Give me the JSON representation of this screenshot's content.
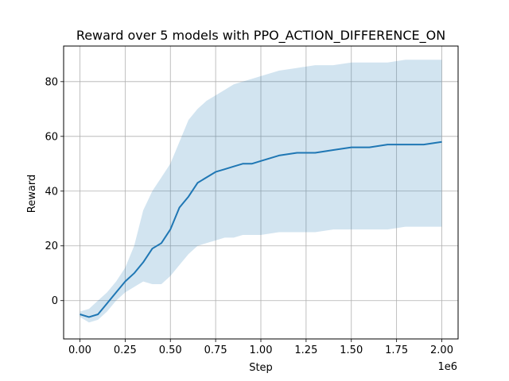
{
  "chart_data": {
    "type": "line",
    "title": "Reward over 5 models with PPO_ACTION_DIFFERENCE_ON",
    "xlabel": "Step",
    "ylabel": "Reward",
    "x_offset_label": "1e6",
    "xlim": [
      -90000,
      2090000
    ],
    "ylim": [
      -14,
      93
    ],
    "x_ticks": [
      0,
      250000,
      500000,
      750000,
      1000000,
      1250000,
      1500000,
      1750000,
      2000000
    ],
    "x_tick_labels": [
      "0.00",
      "0.25",
      "0.50",
      "0.75",
      "1.00",
      "1.25",
      "1.50",
      "1.75",
      "2.00"
    ],
    "y_ticks": [
      0,
      20,
      40,
      60,
      80
    ],
    "y_tick_labels": [
      "0",
      "20",
      "40",
      "60",
      "80"
    ],
    "grid": true,
    "colors": {
      "line": "#1f77b4",
      "band": "#1f77b4",
      "grid": "#b0b0b0"
    },
    "series": [
      {
        "x": [
          0,
          50000,
          100000,
          150000,
          200000,
          250000,
          300000,
          350000,
          400000,
          450000,
          500000,
          550000,
          600000,
          650000,
          700000,
          750000,
          800000,
          850000,
          900000,
          950000,
          1000000,
          1100000,
          1200000,
          1300000,
          1400000,
          1500000,
          1600000,
          1700000,
          1800000,
          1900000,
          2000000
        ],
        "mean": [
          -5,
          -6,
          -5,
          -1,
          3,
          7,
          10,
          14,
          19,
          21,
          26,
          34,
          38,
          43,
          45,
          47,
          48,
          49,
          50,
          50,
          51,
          53,
          54,
          54,
          55,
          56,
          56,
          57,
          57,
          57,
          58
        ],
        "upper": [
          -4,
          -3,
          0,
          3,
          7,
          12,
          20,
          33,
          40,
          45,
          50,
          58,
          66,
          70,
          73,
          75,
          77,
          79,
          80,
          81,
          82,
          84,
          85,
          86,
          86,
          87,
          87,
          87,
          88,
          88,
          88
        ],
        "lower": [
          -6,
          -8,
          -7,
          -4,
          0,
          3,
          5,
          7,
          6,
          6,
          9,
          13,
          17,
          20,
          21,
          22,
          23,
          23,
          24,
          24,
          24,
          25,
          25,
          25,
          26,
          26,
          26,
          26,
          27,
          27,
          27
        ]
      }
    ]
  }
}
